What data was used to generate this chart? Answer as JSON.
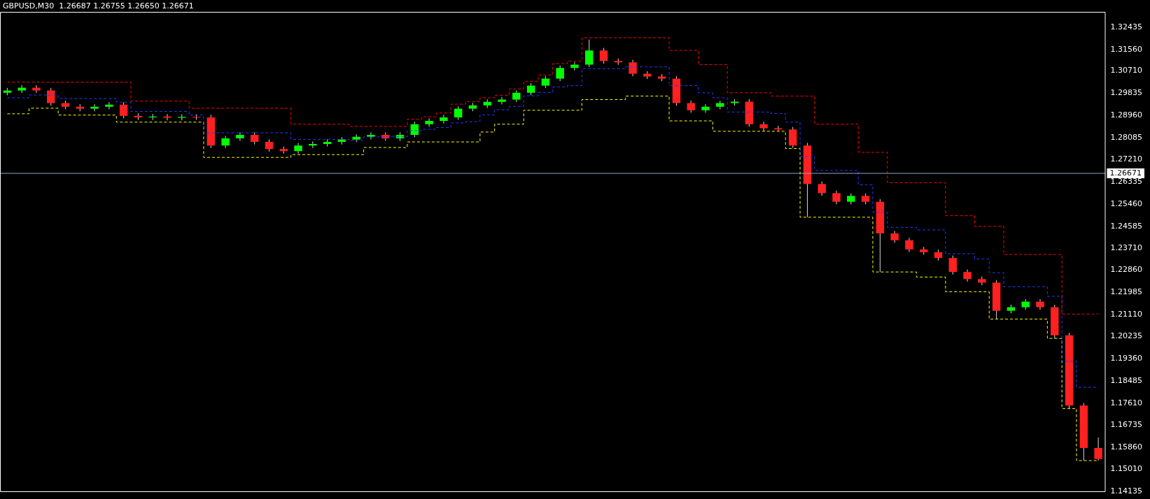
{
  "chart_data": {
    "type": "candlestick",
    "title": "GBPUSD,M30  1.26687 1.26755 1.26650 1.26671",
    "categories": [
      null,
      null,
      null,
      null,
      null,
      null,
      null,
      null,
      null,
      null,
      null,
      null,
      null,
      null,
      null,
      null,
      null,
      null,
      null,
      null,
      null,
      null,
      null,
      null,
      null,
      null,
      null,
      null,
      null,
      null,
      null,
      null,
      null,
      null,
      null,
      null,
      null,
      null,
      null,
      null,
      null,
      null,
      null,
      null,
      null,
      null,
      null,
      null,
      null,
      null,
      null,
      null,
      null,
      null,
      null,
      null,
      null,
      null,
      null,
      null,
      null,
      null,
      null,
      null,
      null,
      null,
      null,
      null,
      null,
      null,
      null,
      null,
      null,
      null,
      null,
      null
    ],
    "ohlc": [
      [
        1.2985,
        1.3004,
        1.2975,
        1.2994
      ],
      [
        1.2994,
        1.3015,
        1.2984,
        1.3005
      ],
      [
        1.3005,
        1.3015,
        1.2984,
        1.2994
      ],
      [
        1.2994,
        1.3004,
        1.2934,
        1.2944
      ],
      [
        1.2944,
        1.2954,
        1.292,
        1.293
      ],
      [
        1.293,
        1.294,
        1.2912,
        1.2922
      ],
      [
        1.2922,
        1.294,
        1.2912,
        1.293
      ],
      [
        1.293,
        1.2948,
        1.292,
        1.2938
      ],
      [
        1.2938,
        1.2948,
        1.2884,
        1.2894
      ],
      [
        1.2894,
        1.2904,
        1.2878,
        1.2888
      ],
      [
        1.2888,
        1.2901,
        1.2878,
        1.2891
      ],
      [
        1.2891,
        1.2901,
        1.2876,
        1.2886
      ],
      [
        1.2886,
        1.29,
        1.2876,
        1.289
      ],
      [
        1.289,
        1.29,
        1.2878,
        1.2888
      ],
      [
        1.2888,
        1.2898,
        1.2767,
        1.2777
      ],
      [
        1.2777,
        1.2815,
        1.2767,
        1.2805
      ],
      [
        1.2805,
        1.2829,
        1.2795,
        1.2819
      ],
      [
        1.2819,
        1.2829,
        1.2781,
        1.2791
      ],
      [
        1.2791,
        1.2801,
        1.2753,
        1.2763
      ],
      [
        1.2763,
        1.2773,
        1.2745,
        1.2755
      ],
      [
        1.2755,
        1.2787,
        1.2745,
        1.2777
      ],
      [
        1.2777,
        1.2793,
        1.2767,
        1.2783
      ],
      [
        1.2783,
        1.2801,
        1.2773,
        1.2791
      ],
      [
        1.2791,
        1.281,
        1.2781,
        1.28
      ],
      [
        1.28,
        1.2821,
        1.279,
        1.2811
      ],
      [
        1.2811,
        1.2829,
        1.2801,
        1.2819
      ],
      [
        1.2819,
        1.2829,
        1.2795,
        1.2805
      ],
      [
        1.2805,
        1.2829,
        1.2795,
        1.2819
      ],
      [
        1.2819,
        1.2871,
        1.2809,
        1.2861
      ],
      [
        1.2861,
        1.2884,
        1.2851,
        1.2874
      ],
      [
        1.2874,
        1.2898,
        1.2864,
        1.2888
      ],
      [
        1.2888,
        1.2932,
        1.2878,
        1.2922
      ],
      [
        1.2922,
        1.2945,
        1.2912,
        1.2935
      ],
      [
        1.2935,
        1.2959,
        1.2925,
        1.2949
      ],
      [
        1.2949,
        1.2968,
        1.2939,
        1.2958
      ],
      [
        1.2958,
        1.2995,
        1.2948,
        1.2985
      ],
      [
        1.2985,
        1.3023,
        1.2975,
        1.3013
      ],
      [
        1.3013,
        1.3051,
        1.3003,
        1.3041
      ],
      [
        1.3041,
        1.3093,
        1.3031,
        1.3083
      ],
      [
        1.3083,
        1.3106,
        1.3073,
        1.3096
      ],
      [
        1.3096,
        1.3195,
        1.3086,
        1.3152
      ],
      [
        1.3152,
        1.3162,
        1.31,
        1.311
      ],
      [
        1.311,
        1.312,
        1.3095,
        1.3105
      ],
      [
        1.3105,
        1.3115,
        1.305,
        1.306
      ],
      [
        1.306,
        1.307,
        1.3039,
        1.3049
      ],
      [
        1.3049,
        1.3059,
        1.3031,
        1.3041
      ],
      [
        1.3041,
        1.3051,
        1.2934,
        1.2944
      ],
      [
        1.2944,
        1.2954,
        1.2906,
        1.2916
      ],
      [
        1.2916,
        1.294,
        1.2906,
        1.293
      ],
      [
        1.293,
        1.2954,
        1.292,
        1.2944
      ],
      [
        1.2944,
        1.296,
        1.2934,
        1.295
      ],
      [
        1.295,
        1.296,
        1.2851,
        1.2861
      ],
      [
        1.2861,
        1.2871,
        1.2835,
        1.2845
      ],
      [
        1.2845,
        1.2855,
        1.2835,
        1.284
      ],
      [
        1.284,
        1.285,
        1.2767,
        1.2777
      ],
      [
        1.2777,
        1.2787,
        1.2494,
        1.2625
      ],
      [
        1.2625,
        1.2635,
        1.2579,
        1.2589
      ],
      [
        1.2589,
        1.2599,
        1.2545,
        1.2555
      ],
      [
        1.2555,
        1.2588,
        1.2545,
        1.2578
      ],
      [
        1.2578,
        1.2588,
        1.2545,
        1.2555
      ],
      [
        1.2555,
        1.2565,
        1.2278,
        1.243
      ],
      [
        1.243,
        1.244,
        1.2393,
        1.2403
      ],
      [
        1.2403,
        1.2413,
        1.2357,
        1.2367
      ],
      [
        1.2367,
        1.2377,
        1.2346,
        1.2356
      ],
      [
        1.2356,
        1.2366,
        1.2323,
        1.2333
      ],
      [
        1.2333,
        1.2343,
        1.2268,
        1.2278
      ],
      [
        1.2278,
        1.2288,
        1.224,
        1.225
      ],
      [
        1.225,
        1.226,
        1.2226,
        1.2236
      ],
      [
        1.2236,
        1.2246,
        1.2092,
        1.2125
      ],
      [
        1.2125,
        1.2149,
        1.2115,
        1.2139
      ],
      [
        1.2139,
        1.2171,
        1.2129,
        1.2161
      ],
      [
        1.2161,
        1.2171,
        1.2129,
        1.2139
      ],
      [
        1.2139,
        1.2149,
        1.2016,
        1.2028
      ],
      [
        1.2028,
        1.2038,
        1.1739,
        1.1751
      ],
      [
        1.1751,
        1.1761,
        1.1534,
        1.1584
      ],
      [
        1.1584,
        1.1625,
        1.1534,
        1.154
      ]
    ],
    "series": [
      {
        "type": "step",
        "color": "#ff0000",
        "line_style": "dashed",
        "values": [
          1.3027,
          1.3027,
          1.3027,
          1.3027,
          1.3027,
          1.3027,
          1.3027,
          1.3027,
          1.3027,
          1.2952,
          1.2952,
          1.2952,
          1.2952,
          1.2924,
          1.2924,
          1.2924,
          1.2924,
          1.2924,
          1.2924,
          1.2924,
          1.2861,
          1.2861,
          1.2861,
          1.2861,
          1.2852,
          1.2852,
          1.2852,
          1.2852,
          1.288,
          1.289,
          1.2905,
          1.294,
          1.295,
          1.2965,
          1.2975,
          1.3,
          1.303,
          1.3055,
          1.31,
          1.311,
          1.3202,
          1.3202,
          1.3202,
          1.3202,
          1.3202,
          1.3202,
          1.3152,
          1.3152,
          1.3096,
          1.3096,
          1.2985,
          1.2985,
          1.2985,
          1.2972,
          1.2972,
          1.2972,
          1.2861,
          1.2861,
          1.2861,
          1.275,
          1.275,
          1.263,
          1.263,
          1.263,
          1.263,
          1.25,
          1.25,
          1.2458,
          1.2458,
          1.2347,
          1.2347,
          1.2347,
          1.2347,
          1.2112,
          1.2112,
          1.2112
        ]
      },
      {
        "type": "step",
        "color": "#1f3cff",
        "line_style": "dashed",
        "values": [
          1.2965,
          1.2965,
          1.2976,
          1.2976,
          1.2962,
          1.2962,
          1.2962,
          1.2962,
          1.2948,
          1.2911,
          1.2911,
          1.2911,
          1.2911,
          1.2897,
          1.2827,
          1.2827,
          1.2827,
          1.2827,
          1.2827,
          1.2827,
          1.2801,
          1.2801,
          1.2801,
          1.2801,
          1.2797,
          1.2811,
          1.2811,
          1.2811,
          1.2836,
          1.2841,
          1.2848,
          1.2866,
          1.2871,
          1.2898,
          1.2918,
          1.2931,
          1.2973,
          1.2986,
          1.3008,
          1.3013,
          1.308,
          1.308,
          1.308,
          1.3087,
          1.3087,
          1.3087,
          1.3013,
          1.3013,
          1.2985,
          1.2965,
          1.2909,
          1.2909,
          1.2909,
          1.2903,
          1.2869,
          1.2733,
          1.2678,
          1.2678,
          1.2678,
          1.2622,
          1.2514,
          1.2454,
          1.2454,
          1.2444,
          1.2444,
          1.235,
          1.235,
          1.2329,
          1.2275,
          1.222,
          1.222,
          1.222,
          1.2182,
          1.1926,
          1.1823,
          1.1823
        ]
      },
      {
        "type": "step",
        "color": "#ffff00",
        "line_style": "dashed",
        "values": [
          1.2902,
          1.2902,
          1.2924,
          1.2924,
          1.2897,
          1.2897,
          1.2897,
          1.2897,
          1.2869,
          1.2869,
          1.2869,
          1.2869,
          1.2869,
          1.2869,
          1.273,
          1.273,
          1.273,
          1.273,
          1.273,
          1.273,
          1.2741,
          1.2741,
          1.2741,
          1.2741,
          1.2741,
          1.2769,
          1.2769,
          1.2769,
          1.2791,
          1.2791,
          1.2791,
          1.2791,
          1.2791,
          1.283,
          1.2861,
          1.2861,
          1.2916,
          1.2916,
          1.2916,
          1.2916,
          1.2958,
          1.2958,
          1.2958,
          1.2972,
          1.2972,
          1.2972,
          1.2874,
          1.2874,
          1.2874,
          1.2833,
          1.2833,
          1.2833,
          1.2833,
          1.2833,
          1.2765,
          1.2494,
          1.2494,
          1.2494,
          1.2494,
          1.2494,
          1.2278,
          1.2278,
          1.2278,
          1.2258,
          1.2258,
          1.22,
          1.22,
          1.22,
          1.2092,
          1.2092,
          1.2092,
          1.2092,
          1.2016,
          1.1739,
          1.1534,
          1.1534
        ]
      }
    ],
    "ylim": [
      1.141,
      1.3304
    ],
    "yticks": [
      1.32435,
      {
        "value": 1.3156,
        "label": "1.31560"
      },
      {
        "value": 1.3071,
        "label": "1.30710"
      },
      1.29835,
      {
        "value": 1.2896,
        "label": "1.28960"
      },
      1.28085,
      {
        "value": 1.2721,
        "label": "1.27210"
      },
      1.26335,
      {
        "value": 1.2546,
        "label": "1.25460"
      },
      1.24585,
      {
        "value": 1.2371,
        "label": "1.23710"
      },
      {
        "value": 1.2286,
        "label": "1.22860"
      },
      1.21985,
      {
        "value": 1.2111,
        "label": "1.21110"
      },
      1.20235,
      {
        "value": 1.1936,
        "label": "1.19360"
      },
      1.18485,
      {
        "value": 1.1761,
        "label": "1.17610"
      },
      1.16735,
      {
        "value": 1.1586,
        "label": "1.15860"
      },
      {
        "value": 1.1501,
        "label": "1.15010"
      },
      1.14135
    ],
    "ref_lines": [
      {
        "axis": "y",
        "value": 1.26671,
        "label": "1.26671",
        "color": "#8fa9c8"
      }
    ],
    "tick_labels": "y",
    "grid": false,
    "legend": false
  }
}
